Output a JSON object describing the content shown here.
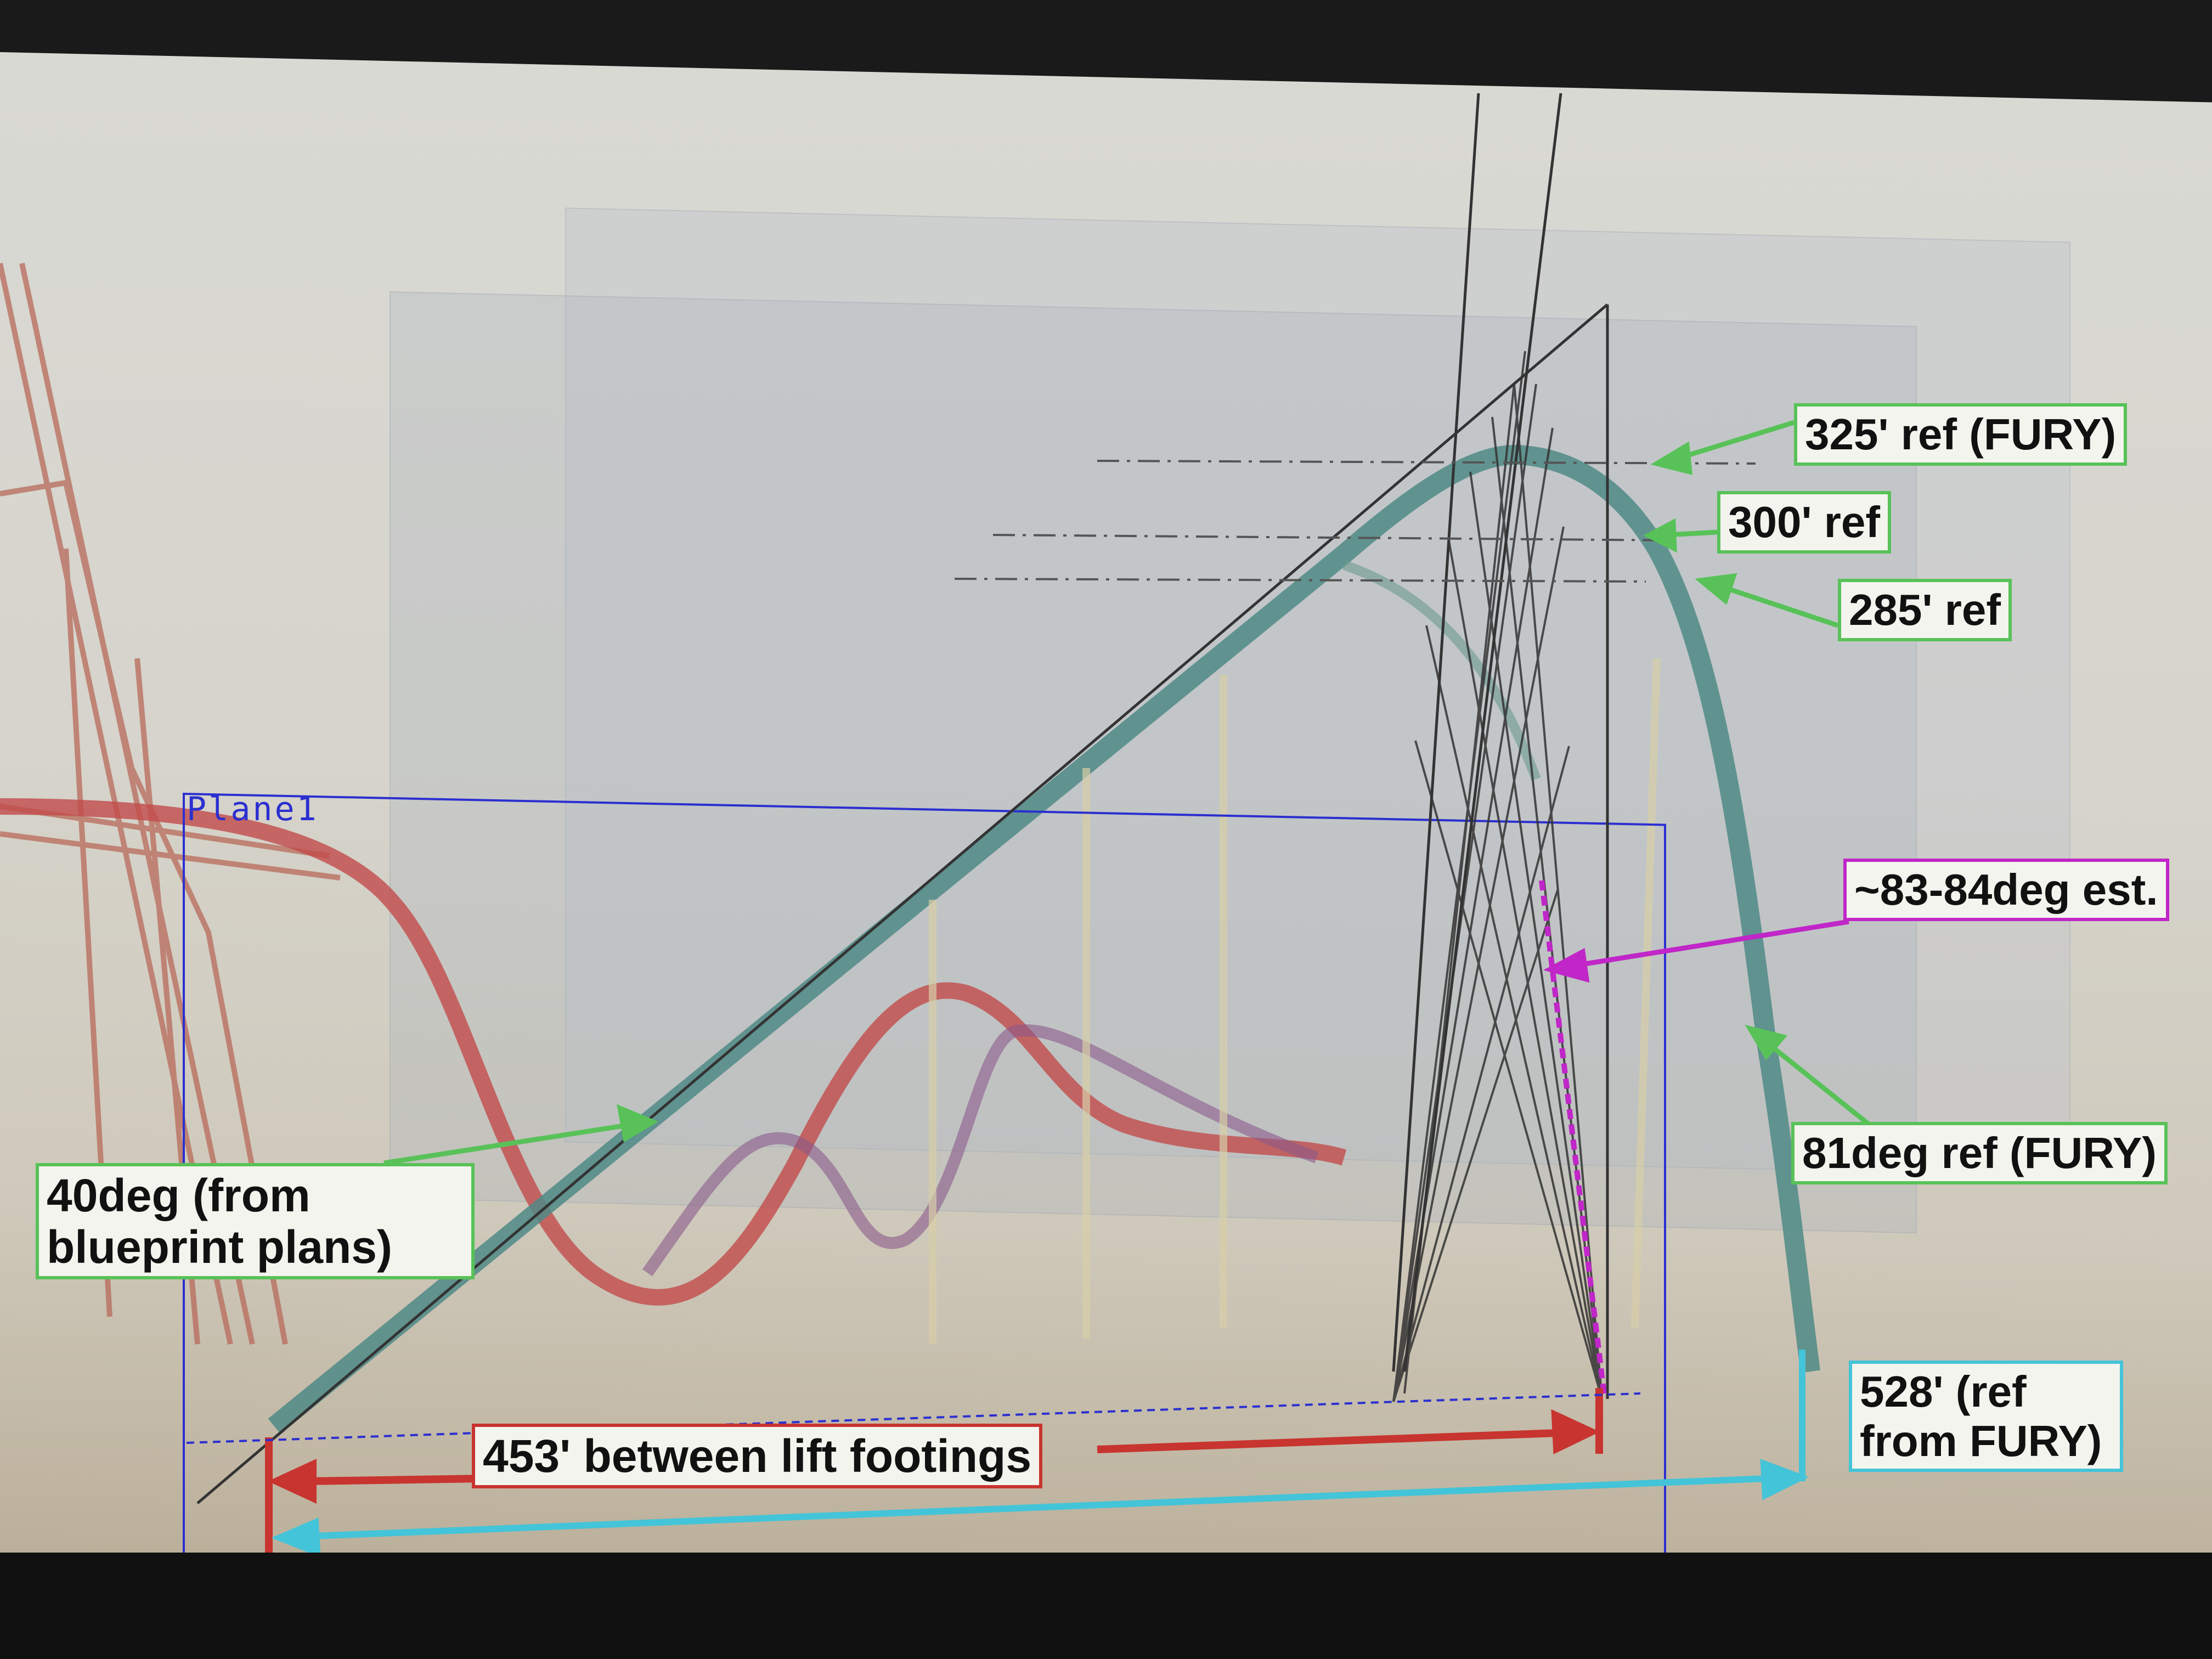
{
  "plane_label": "Plane1",
  "annotations": {
    "ref_325": "325' ref (FURY)",
    "ref_300": "300' ref",
    "ref_285": "285' ref",
    "angle_est": "~83-84deg est.",
    "ref_81deg": "81deg ref (FURY)",
    "angle_40": "40deg (from blueprint plans)",
    "ref_528": "528' (ref from FURY)",
    "footings": "453' between lift footings"
  },
  "colors": {
    "green": "#58c258",
    "magenta": "#c026c8",
    "cyan": "#44c4d8",
    "red": "#c8342f",
    "plane_blue": "#2b2fd0",
    "track_teal": "#4f8a86",
    "track_red": "#c24b4b"
  }
}
